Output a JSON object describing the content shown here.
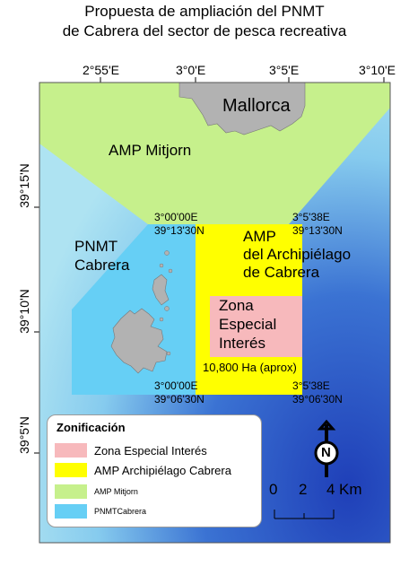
{
  "title": {
    "line1": "Propuesta de ampliación del PNMT",
    "line2": "de Cabrera del sector de pesca recreativa"
  },
  "axes": {
    "x_ticks": [
      "2°55'E",
      "3°0'E",
      "3°5'E",
      "3°10'E"
    ],
    "y_ticks": [
      "39°15'N",
      "39°10'N",
      "39°5'N"
    ]
  },
  "places": {
    "mallorca": "Mallorca",
    "amp_mitjorn": "AMP Mitjorn",
    "pnmt_line1": "PNMT",
    "pnmt_line2": "Cabrera",
    "amp_arch_line1": "AMP",
    "amp_arch_line2": "del Archipiélago",
    "amp_arch_line3": "de Cabrera",
    "zona_line1": "Zona",
    "zona_line2": "Especial",
    "zona_line3": "Interés",
    "area": "10,800 Ha (aprox)"
  },
  "corners": {
    "nw_lon": "3°00'00E",
    "nw_lat": "39°13'30N",
    "ne_lon": "3°5'38E",
    "ne_lat": "39°13'30N",
    "sw_lon": "3°00'00E",
    "sw_lat": "39°06'30N",
    "se_lon": "3°5'38E",
    "se_lat": "39°06'30N"
  },
  "legend": {
    "title": "Zonificación",
    "items": [
      {
        "label": "Zona Especial Interés",
        "color": "#f7b9bc"
      },
      {
        "label": "AMP Archipiélago Cabrera",
        "color": "#ffff00"
      },
      {
        "label": "AMP Mitjorn",
        "color": "#c6f08c"
      },
      {
        "label": "PNMTCabrera",
        "color": "#66cff5"
      }
    ]
  },
  "north_arrow": {
    "letter": "N"
  },
  "scale_bar": {
    "ticks": [
      "0",
      "2",
      "4"
    ],
    "unit": "Km"
  },
  "colors": {
    "sea_light": "#aee3f2",
    "sea_deep": "#1f3fb8",
    "land": "#b2b2b2"
  }
}
